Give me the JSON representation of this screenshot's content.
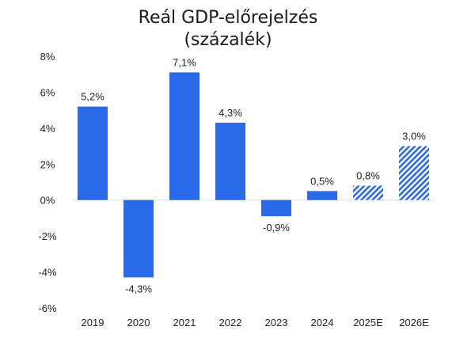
{
  "chart_data": {
    "type": "bar",
    "title_line1": "Reál GDP-előrejelzés",
    "title_line2": "(százalék)",
    "categories": [
      "2019",
      "2020",
      "2021",
      "2022",
      "2023",
      "2024",
      "2025E",
      "2026E"
    ],
    "values": [
      5.2,
      -4.3,
      7.1,
      4.3,
      -0.9,
      0.5,
      0.8,
      3.0
    ],
    "value_labels": [
      "5,2%",
      "-4,3%",
      "7,1%",
      "4,3%",
      "-0,9%",
      "0,5%",
      "0,8%",
      "3,0%"
    ],
    "estimate": [
      false,
      false,
      false,
      false,
      false,
      false,
      true,
      true
    ],
    "ylim": [
      -6,
      8
    ],
    "yticks": [
      8,
      6,
      4,
      2,
      0,
      -2,
      -4,
      -6
    ],
    "ytick_labels": [
      "8%",
      "6%",
      "4%",
      "2%",
      "0%",
      "-2%",
      "-4%",
      "-6%"
    ],
    "grid": false,
    "bar_color": "#2a6ae8",
    "zero_line_color": "#e0e0e0"
  }
}
